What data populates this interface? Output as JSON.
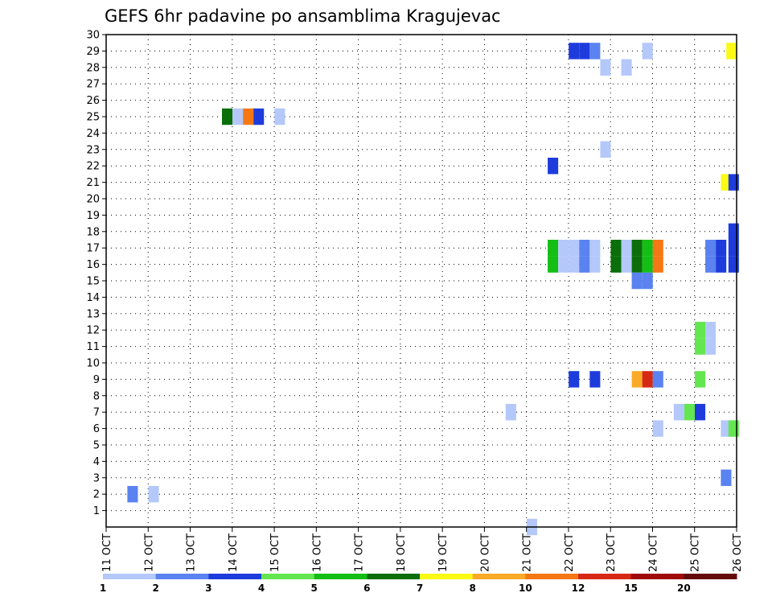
{
  "chart_data": {
    "type": "heatmap",
    "title": "GEFS 6hr padavine po ansamblima Kragujevac",
    "xlabel": "",
    "ylabel": "",
    "x_tick_labels": [
      "11 OCT",
      "12 OCT",
      "13 OCT",
      "14 OCT",
      "15 OCT",
      "16 OCT",
      "17 OCT",
      "18 OCT",
      "19 OCT",
      "20 OCT",
      "21 OCT",
      "22 OCT",
      "23 OCT",
      "24 OCT",
      "25 OCT",
      "26 OCT"
    ],
    "x_range_days": [
      0,
      15
    ],
    "y_tick_labels": [
      "1",
      "2",
      "3",
      "4",
      "5",
      "6",
      "7",
      "8",
      "9",
      "10",
      "11",
      "12",
      "13",
      "14",
      "15",
      "16",
      "17",
      "18",
      "19",
      "20",
      "21",
      "22",
      "23",
      "24",
      "25",
      "26",
      "27",
      "28",
      "29",
      "30"
    ],
    "y_range": [
      0,
      30
    ],
    "grid": true,
    "colorbar": {
      "colors": [
        "#b4c8fa",
        "#5a82f0",
        "#1e3cdc",
        "#64e650",
        "#14be14",
        "#0a6e0a",
        "#fafa14",
        "#faaa28",
        "#f57814",
        "#d72814",
        "#a00a0a",
        "#640a0a"
      ],
      "tick_labels": [
        "1",
        "2",
        "3",
        "4",
        "5",
        "6",
        "7",
        "8",
        "10",
        "12",
        "15",
        "20"
      ]
    },
    "cells": [
      {
        "member": 2,
        "day": 0.63,
        "cls": 1
      },
      {
        "member": 2,
        "day": 1.13,
        "cls": 0
      },
      {
        "member": 25,
        "day": 2.88,
        "cls": 5
      },
      {
        "member": 25,
        "day": 3.13,
        "cls": 0
      },
      {
        "member": 25,
        "day": 3.38,
        "cls": 8
      },
      {
        "member": 25,
        "day": 3.63,
        "cls": 2
      },
      {
        "member": 25,
        "day": 4.13,
        "cls": 0
      },
      {
        "member": 29,
        "day": 11.13,
        "cls": 2
      },
      {
        "member": 29,
        "day": 11.38,
        "cls": 2
      },
      {
        "member": 29,
        "day": 11.63,
        "cls": 1
      },
      {
        "member": 29,
        "day": 12.88,
        "cls": 0
      },
      {
        "member": 29,
        "day": 14.88,
        "cls": 6
      },
      {
        "member": 28,
        "day": 11.88,
        "cls": 0
      },
      {
        "member": 28,
        "day": 12.38,
        "cls": 0
      },
      {
        "member": 23,
        "day": 11.88,
        "cls": 0
      },
      {
        "member": 22,
        "day": 10.63,
        "cls": 2
      },
      {
        "member": 21,
        "day": 14.75,
        "cls": 6
      },
      {
        "member": 21,
        "day": 14.93,
        "cls": 2
      },
      {
        "member": 18,
        "day": 14.93,
        "cls": 2
      },
      {
        "member": 17,
        "day": 10.63,
        "cls": 4
      },
      {
        "member": 17,
        "day": 10.88,
        "cls": 0
      },
      {
        "member": 17,
        "day": 11.13,
        "cls": 0
      },
      {
        "member": 17,
        "day": 11.38,
        "cls": 1
      },
      {
        "member": 17,
        "day": 11.63,
        "cls": 0
      },
      {
        "member": 17,
        "day": 12.13,
        "cls": 5
      },
      {
        "member": 17,
        "day": 12.38,
        "cls": 0
      },
      {
        "member": 17,
        "day": 12.63,
        "cls": 5
      },
      {
        "member": 17,
        "day": 12.88,
        "cls": 4
      },
      {
        "member": 17,
        "day": 13.13,
        "cls": 8
      },
      {
        "member": 17,
        "day": 14.38,
        "cls": 1
      },
      {
        "member": 17,
        "day": 14.63,
        "cls": 2
      },
      {
        "member": 17,
        "day": 14.93,
        "cls": 2
      },
      {
        "member": 16,
        "day": 10.63,
        "cls": 4
      },
      {
        "member": 16,
        "day": 10.88,
        "cls": 0
      },
      {
        "member": 16,
        "day": 11.13,
        "cls": 0
      },
      {
        "member": 16,
        "day": 11.38,
        "cls": 1
      },
      {
        "member": 16,
        "day": 11.63,
        "cls": 0
      },
      {
        "member": 16,
        "day": 12.13,
        "cls": 5
      },
      {
        "member": 16,
        "day": 12.38,
        "cls": 0
      },
      {
        "member": 16,
        "day": 12.63,
        "cls": 5
      },
      {
        "member": 16,
        "day": 12.88,
        "cls": 4
      },
      {
        "member": 16,
        "day": 13.13,
        "cls": 8
      },
      {
        "member": 16,
        "day": 14.38,
        "cls": 1
      },
      {
        "member": 16,
        "day": 14.63,
        "cls": 2
      },
      {
        "member": 16,
        "day": 14.93,
        "cls": 2
      },
      {
        "member": 15,
        "day": 12.63,
        "cls": 1
      },
      {
        "member": 15,
        "day": 12.88,
        "cls": 1
      },
      {
        "member": 12,
        "day": 14.13,
        "cls": 3
      },
      {
        "member": 12,
        "day": 14.38,
        "cls": 0
      },
      {
        "member": 11,
        "day": 14.13,
        "cls": 3
      },
      {
        "member": 11,
        "day": 14.38,
        "cls": 0
      },
      {
        "member": 9,
        "day": 11.13,
        "cls": 2
      },
      {
        "member": 9,
        "day": 11.63,
        "cls": 2
      },
      {
        "member": 9,
        "day": 12.63,
        "cls": 7
      },
      {
        "member": 9,
        "day": 12.88,
        "cls": 9
      },
      {
        "member": 9,
        "day": 13.13,
        "cls": 1
      },
      {
        "member": 9,
        "day": 14.13,
        "cls": 3
      },
      {
        "member": 7,
        "day": 9.63,
        "cls": 0
      },
      {
        "member": 7,
        "day": 13.63,
        "cls": 0
      },
      {
        "member": 7,
        "day": 13.88,
        "cls": 3
      },
      {
        "member": 7,
        "day": 14.13,
        "cls": 2
      },
      {
        "member": 6,
        "day": 13.13,
        "cls": 0
      },
      {
        "member": 6,
        "day": 14.75,
        "cls": 0
      },
      {
        "member": 6,
        "day": 14.93,
        "cls": 3
      },
      {
        "member": 3,
        "day": 14.75,
        "cls": 1
      },
      {
        "member": 0,
        "day": 10.13,
        "cls": 0
      }
    ]
  }
}
